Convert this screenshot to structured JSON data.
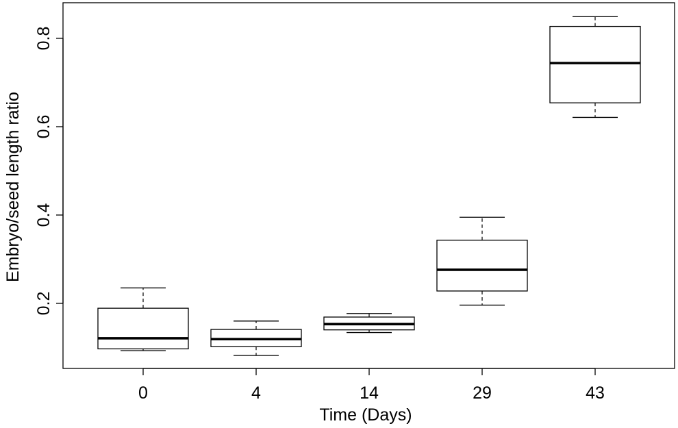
{
  "chart_data": {
    "type": "box",
    "title": "",
    "xlabel": "Time (Days)",
    "ylabel": "Embryo/seed length ratio",
    "categories": [
      "0",
      "4",
      "14",
      "29",
      "43"
    ],
    "boxes": [
      {
        "category": "0",
        "whisker_low": 0.093,
        "q1": 0.097,
        "median": 0.121,
        "q3": 0.189,
        "whisker_high": 0.235
      },
      {
        "category": "4",
        "whisker_low": 0.082,
        "q1": 0.102,
        "median": 0.119,
        "q3": 0.141,
        "whisker_high": 0.16
      },
      {
        "category": "14",
        "whisker_low": 0.134,
        "q1": 0.14,
        "median": 0.153,
        "q3": 0.169,
        "whisker_high": 0.177
      },
      {
        "category": "29",
        "whisker_low": 0.196,
        "q1": 0.228,
        "median": 0.276,
        "q3": 0.343,
        "whisker_high": 0.395
      },
      {
        "category": "43",
        "whisker_low": 0.621,
        "q1": 0.654,
        "median": 0.744,
        "q3": 0.827,
        "whisker_high": 0.849
      }
    ],
    "y_ticks": [
      "0.2",
      "0.4",
      "0.6",
      "0.8"
    ],
    "y_tick_values": [
      0.2,
      0.4,
      0.6,
      0.8
    ],
    "ylim": [
      0.05,
      0.88
    ],
    "grid": false,
    "legend": "none",
    "colors": {
      "box_fill": "#ffffff",
      "stroke": "#000000"
    }
  }
}
